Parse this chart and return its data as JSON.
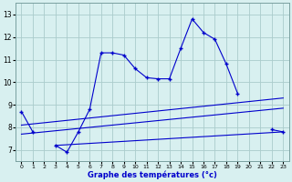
{
  "xlabel": "Graphe des températures (°c)",
  "bg_color": "#d8f0f0",
  "line_color": "#0000cc",
  "grid_color": "#aacccc",
  "x_ticks": [
    0,
    1,
    2,
    3,
    4,
    5,
    6,
    7,
    8,
    9,
    10,
    11,
    12,
    13,
    14,
    15,
    16,
    17,
    18,
    19,
    20,
    21,
    22,
    23
  ],
  "y_ticks": [
    7,
    8,
    9,
    10,
    11,
    12,
    13
  ],
  "ylim": [
    6.5,
    13.5
  ],
  "xlim": [
    -0.5,
    23.5
  ],
  "line1_x": [
    0,
    1,
    2,
    3,
    4,
    5,
    6,
    7,
    8,
    9,
    10,
    11,
    12,
    13,
    14,
    15,
    16,
    17,
    18,
    19,
    20,
    21,
    22,
    23
  ],
  "line1_y": [
    8.7,
    7.8,
    null,
    7.2,
    6.9,
    7.8,
    8.8,
    11.3,
    11.3,
    11.2,
    10.6,
    10.2,
    10.15,
    10.15,
    11.5,
    12.8,
    12.2,
    11.9,
    10.8,
    9.5,
    null,
    null,
    7.9,
    7.8
  ],
  "line3_x": [
    0,
    23
  ],
  "line3_y": [
    8.1,
    9.3
  ],
  "line4_x": [
    0,
    23
  ],
  "line4_y": [
    7.7,
    8.85
  ],
  "line5_x": [
    3,
    23
  ],
  "line5_y": [
    7.2,
    7.8
  ]
}
